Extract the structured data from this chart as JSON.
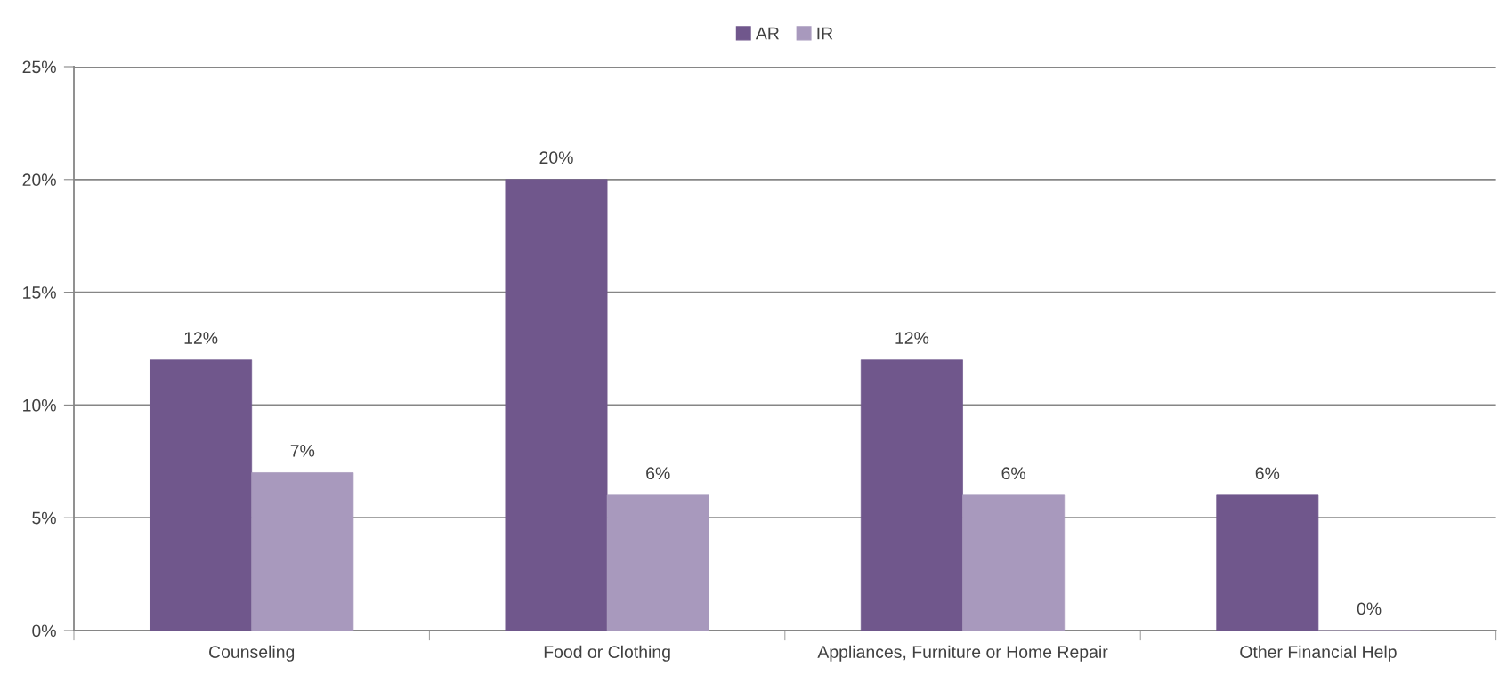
{
  "chart_data": {
    "type": "bar",
    "categories": [
      "Counseling",
      "Food or Clothing",
      "Appliances, Furniture or Home Repair",
      "Other Financial Help"
    ],
    "series": [
      {
        "name": "AR",
        "color": "#70578c",
        "values": [
          12,
          20,
          12,
          6
        ],
        "value_labels": [
          "12%",
          "20%",
          "12%",
          "6%"
        ]
      },
      {
        "name": "IR",
        "color": "#a899bd",
        "values": [
          7,
          6,
          6,
          0
        ],
        "value_labels": [
          "7%",
          "6%",
          "6%",
          "0%"
        ]
      }
    ],
    "ylim": [
      0,
      25
    ],
    "yticks": [
      {
        "value": 0,
        "label": "0%"
      },
      {
        "value": 5,
        "label": "5%"
      },
      {
        "value": 10,
        "label": "10%"
      },
      {
        "value": 15,
        "label": "15%"
      },
      {
        "value": 20,
        "label": "20%"
      },
      {
        "value": 25,
        "label": "25%"
      }
    ],
    "grid": "y",
    "legend": "top"
  }
}
